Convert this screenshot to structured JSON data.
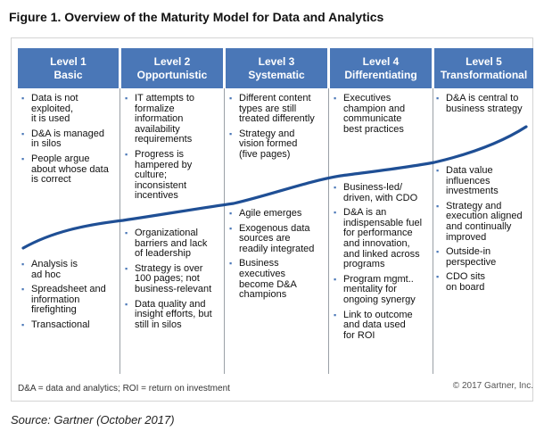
{
  "title": "Figure 1. Overview of the Maturity Model for Data and Analytics",
  "levels": [
    {
      "name": "Level 1",
      "label": "Basic",
      "top_items": [
        [
          "Data is not",
          "exploited,",
          "it is used"
        ],
        [
          "D&A is managed",
          "in silos"
        ],
        [
          "People argue",
          "about whose data",
          "is correct"
        ]
      ],
      "bottom_items": [
        [
          "Analysis is",
          "ad hoc"
        ],
        [
          "Spreadsheet and",
          "information",
          "firefighting"
        ],
        [
          "Transactional"
        ]
      ]
    },
    {
      "name": "Level 2",
      "label": "Opportunistic",
      "top_items": [
        [
          "IT attempts to",
          "formalize",
          "information",
          "availability",
          "requirements"
        ],
        [
          "Progress is",
          "hampered by",
          "culture;",
          "inconsistent",
          "incentives"
        ]
      ],
      "bottom_items": [
        [
          "Organizational",
          "barriers and lack",
          "of leadership"
        ],
        [
          "Strategy is over",
          "100 pages; not",
          "business-relevant"
        ],
        [
          "Data quality and",
          "insight efforts, but",
          "still in silos"
        ]
      ]
    },
    {
      "name": "Level 3",
      "label": "Systematic",
      "top_items": [
        [
          "Different content",
          "types are still",
          "treated differently"
        ],
        [
          "Strategy and",
          "vision formed",
          "(five pages)"
        ]
      ],
      "bottom_items": [
        [
          "Agile emerges"
        ],
        [
          "Exogenous data",
          "sources are",
          "readily integrated"
        ],
        [
          "Business",
          "executives",
          "become D&A",
          "champions"
        ]
      ]
    },
    {
      "name": "Level 4",
      "label": "Differentiating",
      "top_items": [
        [
          "Executives",
          "champion and",
          "communicate",
          "best practices"
        ]
      ],
      "bottom_items": [
        [
          "Business-led/",
          "driven, with CDO"
        ],
        [
          "D&A is an",
          "indispensable fuel",
          "for performance",
          "and innovation,",
          "and linked across",
          "programs"
        ],
        [
          "Program mgmt..",
          "mentality for",
          "ongoing synergy"
        ],
        [
          "Link to outcome",
          "and data used",
          "for ROI"
        ]
      ]
    },
    {
      "name": "Level 5",
      "label": "Transformational",
      "top_items": [
        [
          "D&A is central to",
          "business strategy"
        ]
      ],
      "bottom_items": [
        [
          "Data value",
          "influences",
          "investments"
        ],
        [
          "Strategy and",
          "execution aligned",
          "and continually",
          "improved"
        ],
        [
          "Outside-in",
          "perspective"
        ],
        [
          "CDO sits",
          "on board"
        ]
      ]
    }
  ],
  "footnote": "D&A = data and analytics; ROI = return on investment",
  "copyright": "© 2017 Gartner, Inc.",
  "source": "Source: Gartner (October 2017)",
  "colors": {
    "header": "#4a77b7",
    "curve": "#1f4f95",
    "bullet": "#4a77b7"
  }
}
